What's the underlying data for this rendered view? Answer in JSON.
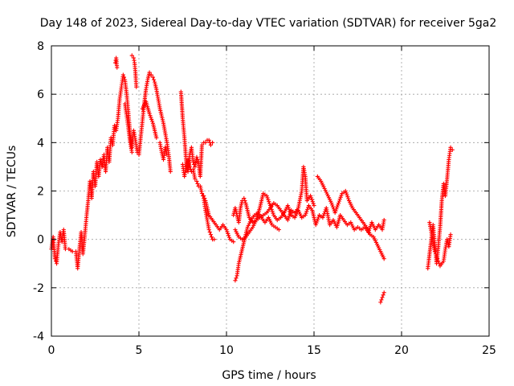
{
  "chart_data": {
    "type": "scatter",
    "title": "Day 148 of 2023, Sidereal Day-to-day VTEC variation (SDTVAR) for receiver 5ga2",
    "xlabel": "GPS time / hours",
    "ylabel": "SDTVAR / TECUs",
    "xlim": [
      0,
      25
    ],
    "ylim": [
      -4,
      8
    ],
    "xticks": [
      0,
      5,
      10,
      15,
      20,
      25
    ],
    "yticks": [
      -4,
      -2,
      0,
      2,
      4,
      6,
      8
    ],
    "grid": true,
    "marker": "+",
    "color": "#ff0000",
    "series": [
      {
        "name": "SDTVAR",
        "segments": [
          [
            [
              0.0,
              -0.4
            ],
            [
              0.1,
              0.1
            ],
            [
              0.2,
              -0.8
            ],
            [
              0.3,
              -1.0
            ],
            [
              0.4,
              -0.2
            ],
            [
              0.5,
              0.3
            ],
            [
              0.6,
              -0.1
            ],
            [
              0.7,
              0.4
            ],
            [
              0.8,
              -0.4
            ],
            [
              1.0,
              -0.4
            ],
            [
              1.2,
              -0.5
            ],
            [
              1.4,
              -0.5
            ],
            [
              1.5,
              -1.2
            ],
            [
              1.6,
              -0.4
            ],
            [
              1.7,
              0.3
            ],
            [
              1.8,
              -0.6
            ],
            [
              1.9,
              0.1
            ],
            [
              2.0,
              0.9
            ],
            [
              2.1,
              1.6
            ],
            [
              2.2,
              2.4
            ],
            [
              2.3,
              1.7
            ],
            [
              2.4,
              2.8
            ],
            [
              2.5,
              2.2
            ],
            [
              2.6,
              3.2
            ],
            [
              2.7,
              2.6
            ],
            [
              2.8,
              3.3
            ],
            [
              2.9,
              3.0
            ],
            [
              3.0,
              3.5
            ],
            [
              3.1,
              2.8
            ],
            [
              3.2,
              3.8
            ],
            [
              3.3,
              3.2
            ],
            [
              3.4,
              4.2
            ],
            [
              3.5,
              3.9
            ],
            [
              3.6,
              4.7
            ],
            [
              3.7,
              4.5
            ],
            [
              3.8,
              5.0
            ],
            [
              3.9,
              5.8
            ],
            [
              4.0,
              6.3
            ],
            [
              4.1,
              6.8
            ],
            [
              4.2,
              6.6
            ],
            [
              4.3,
              6.0
            ],
            [
              4.4,
              5.2
            ],
            [
              4.5,
              4.3
            ],
            [
              4.6,
              3.8
            ],
            [
              4.7,
              4.5
            ],
            [
              4.8,
              4.1
            ],
            [
              4.9,
              3.6
            ],
            [
              5.0,
              3.5
            ],
            [
              5.1,
              4.2
            ],
            [
              5.2,
              4.9
            ],
            [
              5.3,
              5.6
            ],
            [
              5.4,
              6.2
            ],
            [
              5.5,
              6.6
            ],
            [
              5.6,
              6.9
            ],
            [
              5.7,
              6.8
            ],
            [
              5.8,
              6.7
            ],
            [
              5.9,
              6.5
            ],
            [
              6.0,
              6.2
            ],
            [
              6.1,
              5.8
            ],
            [
              6.2,
              5.4
            ],
            [
              6.3,
              5.1
            ],
            [
              6.4,
              4.8
            ],
            [
              6.5,
              4.4
            ],
            [
              6.6,
              4.0
            ],
            [
              6.7,
              3.5
            ],
            [
              6.8,
              2.8
            ]
          ],
          [
            [
              3.65,
              7.3
            ],
            [
              3.7,
              7.5
            ],
            [
              3.75,
              7.1
            ]
          ],
          [
            [
              4.6,
              7.6
            ],
            [
              4.7,
              7.5
            ],
            [
              4.75,
              7.3
            ],
            [
              4.8,
              6.9
            ],
            [
              4.85,
              6.3
            ]
          ],
          [
            [
              4.2,
              5.6
            ],
            [
              4.3,
              5.1
            ],
            [
              4.4,
              4.6
            ],
            [
              4.5,
              4.0
            ],
            [
              4.6,
              3.6
            ]
          ],
          [
            [
              5.2,
              5.4
            ],
            [
              5.4,
              5.7
            ],
            [
              5.6,
              5.2
            ],
            [
              5.8,
              4.8
            ],
            [
              6.0,
              4.2
            ]
          ],
          [
            [
              6.2,
              4.0
            ],
            [
              6.3,
              3.6
            ],
            [
              6.4,
              3.3
            ],
            [
              6.5,
              3.8
            ],
            [
              6.6,
              3.5
            ]
          ],
          [
            [
              7.4,
              6.1
            ],
            [
              7.5,
              5.0
            ],
            [
              7.6,
              4.2
            ],
            [
              7.7,
              3.2
            ],
            [
              7.8,
              2.8
            ],
            [
              7.9,
              3.5
            ],
            [
              8.0,
              3.8
            ],
            [
              8.1,
              3.2
            ],
            [
              8.2,
              3.0
            ],
            [
              8.3,
              3.4
            ],
            [
              8.4,
              3.2
            ],
            [
              8.5,
              2.6
            ],
            [
              8.6,
              3.9
            ],
            [
              8.7,
              4.0
            ],
            [
              8.8,
              4.0
            ],
            [
              8.9,
              4.1
            ],
            [
              9.0,
              4.1
            ],
            [
              9.1,
              3.9
            ],
            [
              9.2,
              4.0
            ]
          ],
          [
            [
              7.5,
              3.1
            ],
            [
              7.6,
              2.6
            ],
            [
              7.7,
              3.0
            ],
            [
              7.8,
              3.3
            ],
            [
              7.9,
              3.0
            ],
            [
              8.0,
              2.8
            ],
            [
              8.1,
              2.9
            ],
            [
              8.2,
              2.5
            ],
            [
              8.3,
              2.4
            ],
            [
              8.4,
              2.2
            ],
            [
              8.5,
              2.2
            ],
            [
              8.6,
              1.9
            ],
            [
              8.7,
              1.7
            ],
            [
              8.8,
              1.2
            ],
            [
              8.9,
              0.8
            ],
            [
              9.0,
              0.4
            ],
            [
              9.1,
              0.2
            ],
            [
              9.2,
              0.0
            ],
            [
              9.3,
              0.0
            ]
          ],
          [
            [
              8.7,
              1.8
            ],
            [
              8.8,
              1.6
            ],
            [
              8.9,
              1.3
            ],
            [
              9.0,
              1.0
            ],
            [
              9.2,
              0.8
            ],
            [
              9.4,
              0.6
            ],
            [
              9.6,
              0.4
            ],
            [
              9.8,
              0.6
            ],
            [
              10.0,
              0.4
            ],
            [
              10.2,
              0.0
            ],
            [
              10.4,
              -0.1
            ]
          ],
          [
            [
              10.4,
              1.0
            ],
            [
              10.5,
              1.3
            ],
            [
              10.6,
              1.0
            ],
            [
              10.7,
              0.7
            ],
            [
              10.8,
              1.3
            ],
            [
              10.9,
              1.6
            ],
            [
              11.0,
              1.7
            ],
            [
              11.1,
              1.5
            ],
            [
              11.2,
              1.2
            ],
            [
              11.3,
              0.9
            ],
            [
              11.5,
              0.7
            ],
            [
              11.7,
              0.8
            ],
            [
              11.9,
              1.3
            ],
            [
              12.1,
              1.9
            ],
            [
              12.3,
              1.8
            ],
            [
              12.5,
              1.4
            ],
            [
              12.7,
              1.0
            ],
            [
              12.9,
              0.8
            ],
            [
              13.1,
              0.9
            ],
            [
              13.3,
              1.1
            ],
            [
              13.5,
              1.4
            ],
            [
              13.7,
              1.0
            ],
            [
              13.9,
              0.9
            ],
            [
              14.1,
              1.2
            ],
            [
              14.3,
              0.9
            ],
            [
              14.5,
              1.0
            ],
            [
              14.7,
              1.4
            ],
            [
              14.9,
              1.2
            ],
            [
              15.1,
              0.6
            ],
            [
              15.3,
              1.0
            ],
            [
              15.5,
              0.9
            ],
            [
              15.7,
              1.3
            ],
            [
              15.9,
              0.6
            ],
            [
              16.1,
              0.8
            ],
            [
              16.3,
              0.5
            ],
            [
              16.5,
              1.0
            ],
            [
              16.7,
              0.8
            ],
            [
              16.9,
              0.6
            ],
            [
              17.1,
              0.7
            ],
            [
              17.3,
              0.4
            ],
            [
              17.5,
              0.5
            ],
            [
              17.7,
              0.4
            ],
            [
              17.9,
              0.5
            ],
            [
              18.1,
              0.3
            ],
            [
              18.3,
              0.7
            ],
            [
              18.5,
              0.4
            ],
            [
              18.7,
              0.6
            ],
            [
              18.9,
              0.4
            ],
            [
              19.0,
              0.8
            ]
          ],
          [
            [
              10.5,
              -1.7
            ],
            [
              10.6,
              -1.5
            ],
            [
              10.7,
              -1.0
            ],
            [
              10.8,
              -0.7
            ],
            [
              10.9,
              -0.4
            ],
            [
              11.0,
              -0.1
            ],
            [
              11.1,
              0.2
            ],
            [
              11.2,
              0.5
            ],
            [
              11.4,
              0.8
            ],
            [
              11.6,
              1.0
            ],
            [
              11.8,
              1.1
            ],
            [
              12.0,
              0.9
            ],
            [
              12.2,
              0.7
            ],
            [
              12.4,
              0.9
            ],
            [
              12.6,
              0.6
            ],
            [
              12.8,
              0.5
            ],
            [
              13.0,
              0.4
            ]
          ],
          [
            [
              10.5,
              0.4
            ],
            [
              10.7,
              0.1
            ],
            [
              10.9,
              0.0
            ],
            [
              11.1,
              0.1
            ],
            [
              11.3,
              0.3
            ],
            [
              11.5,
              0.5
            ],
            [
              11.7,
              0.8
            ],
            [
              11.9,
              0.9
            ],
            [
              12.1,
              1.0
            ],
            [
              12.3,
              1.1
            ],
            [
              12.5,
              1.3
            ],
            [
              12.7,
              1.5
            ],
            [
              12.9,
              1.4
            ],
            [
              13.1,
              1.2
            ],
            [
              13.3,
              1.0
            ],
            [
              13.5,
              0.8
            ],
            [
              13.7,
              1.2
            ],
            [
              13.9,
              1.1
            ],
            [
              14.1,
              1.3
            ],
            [
              14.3,
              2.0
            ],
            [
              14.4,
              3.0
            ],
            [
              14.5,
              2.6
            ],
            [
              14.6,
              1.6
            ],
            [
              14.8,
              1.8
            ],
            [
              15.0,
              1.4
            ]
          ],
          [
            [
              15.2,
              2.6
            ],
            [
              15.4,
              2.4
            ],
            [
              15.6,
              2.1
            ],
            [
              15.8,
              1.8
            ],
            [
              16.0,
              1.5
            ],
            [
              16.2,
              1.1
            ],
            [
              16.4,
              1.5
            ],
            [
              16.6,
              1.9
            ],
            [
              16.8,
              2.0
            ],
            [
              17.0,
              1.6
            ],
            [
              17.2,
              1.3
            ],
            [
              17.4,
              1.1
            ],
            [
              17.6,
              0.9
            ],
            [
              17.8,
              0.7
            ],
            [
              18.0,
              0.5
            ],
            [
              18.2,
              0.2
            ],
            [
              18.4,
              0.1
            ],
            [
              18.6,
              -0.2
            ],
            [
              18.8,
              -0.5
            ],
            [
              19.0,
              -0.8
            ]
          ],
          [
            [
              18.8,
              -2.6
            ],
            [
              18.9,
              -2.4
            ],
            [
              19.0,
              -2.2
            ]
          ],
          [
            [
              21.5,
              -1.2
            ],
            [
              21.6,
              -0.6
            ],
            [
              21.7,
              0.0
            ],
            [
              21.8,
              0.6
            ],
            [
              21.9,
              -0.2
            ],
            [
              22.0,
              -1.0
            ],
            [
              22.1,
              -0.3
            ],
            [
              22.2,
              0.5
            ],
            [
              22.3,
              1.6
            ],
            [
              22.4,
              2.3
            ],
            [
              22.5,
              1.8
            ],
            [
              22.6,
              2.5
            ],
            [
              22.7,
              3.3
            ],
            [
              22.8,
              3.8
            ],
            [
              22.9,
              3.7
            ]
          ],
          [
            [
              21.6,
              0.7
            ],
            [
              21.7,
              0.3
            ],
            [
              21.8,
              -0.1
            ],
            [
              21.9,
              -0.5
            ],
            [
              22.0,
              -0.7
            ],
            [
              22.1,
              -0.9
            ],
            [
              22.2,
              -1.1
            ],
            [
              22.4,
              -0.9
            ],
            [
              22.5,
              -0.4
            ],
            [
              22.6,
              0.0
            ],
            [
              22.7,
              -0.3
            ],
            [
              22.8,
              0.2
            ]
          ]
        ]
      }
    ]
  }
}
